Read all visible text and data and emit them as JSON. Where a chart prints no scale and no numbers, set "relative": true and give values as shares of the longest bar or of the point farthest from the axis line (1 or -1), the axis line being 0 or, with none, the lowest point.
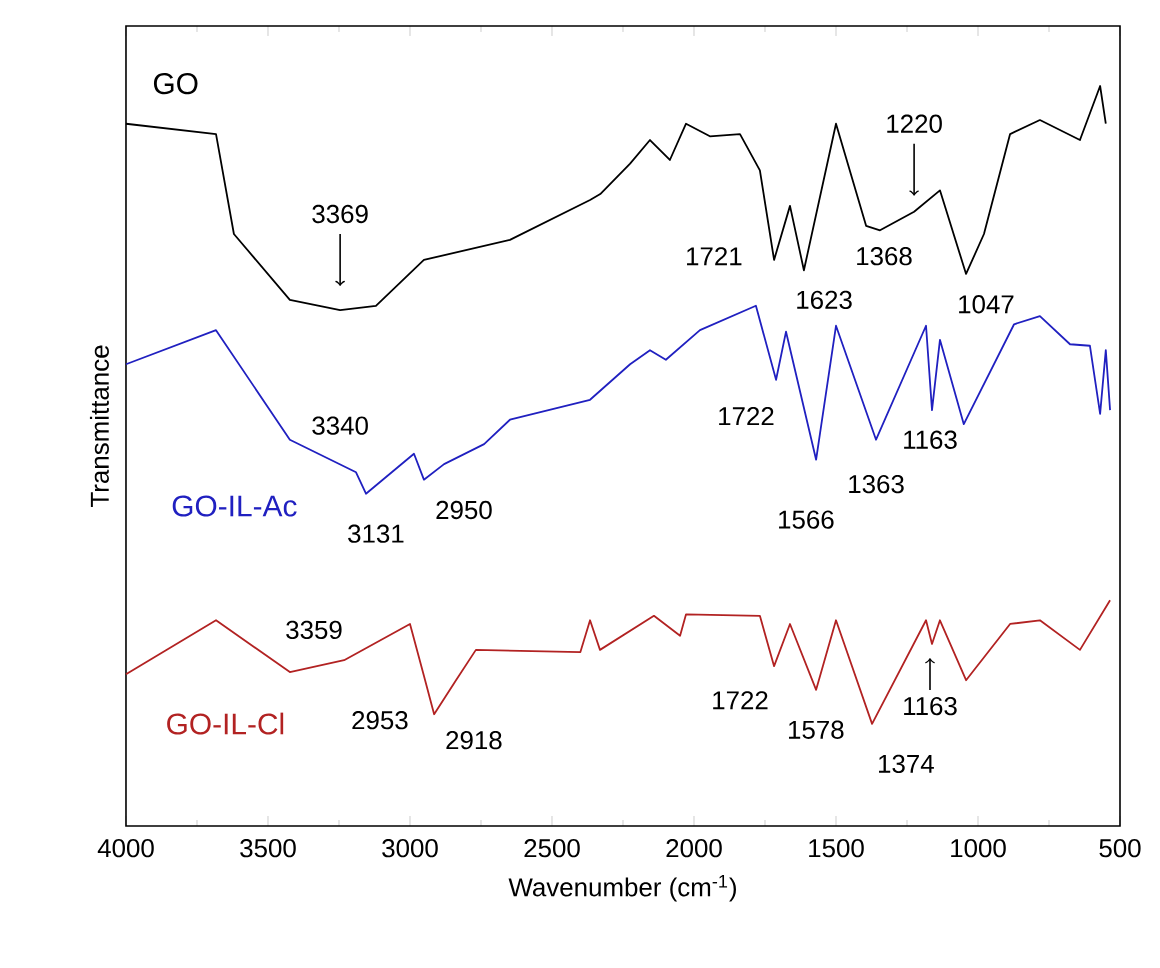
{
  "chart_data": {
    "type": "line",
    "relative": true,
    "xlabel": "Wavenumber (cm$^{-1}$)",
    "ylabel": "Transmittance",
    "xlim": [
      4000,
      500
    ],
    "xticks": [
      4000,
      3500,
      3000,
      2500,
      2000,
      1500,
      1000,
      500
    ],
    "series": [
      {
        "name": "GO",
        "color": "#000000",
        "x": [
          4000,
          3683,
          3620,
          3423,
          3246,
          3120,
          2951,
          2648,
          2366,
          2330,
          2225,
          2155,
          2085,
          2028,
          1944,
          1838,
          1768,
          1718,
          1662,
          1613,
          1500,
          1394,
          1345,
          1225,
          1134,
          1042,
          979,
          887,
          782,
          641,
          570,
          550
        ],
        "values": [
          0.949,
          0.935,
          0.8,
          0.711,
          0.697,
          0.703,
          0.765,
          0.792,
          0.846,
          0.854,
          0.895,
          0.927,
          0.9,
          0.949,
          0.932,
          0.935,
          0.886,
          0.765,
          0.838,
          0.751,
          0.949,
          0.811,
          0.805,
          0.83,
          0.859,
          0.746,
          0.8,
          0.935,
          0.954,
          0.927,
          1.0,
          0.949
        ]
      },
      {
        "name": "GO-IL-Ac",
        "color": "#2020c0",
        "x": [
          4000,
          3683,
          3423,
          3190,
          3155,
          2986,
          2951,
          2880,
          2739,
          2648,
          2366,
          2225,
          2155,
          2099,
          1979,
          1782,
          1711,
          1676,
          1570,
          1500,
          1359,
          1183,
          1162,
          1134,
          1050,
          873,
          782,
          676,
          606,
          570,
          550,
          535
        ],
        "values": [
          0.624,
          0.67,
          0.522,
          0.478,
          0.449,
          0.503,
          0.468,
          0.489,
          0.516,
          0.549,
          0.576,
          0.624,
          0.643,
          0.63,
          0.67,
          0.703,
          0.603,
          0.668,
          0.495,
          0.676,
          0.522,
          0.676,
          0.562,
          0.657,
          0.543,
          0.678,
          0.689,
          0.651,
          0.649,
          0.557,
          0.643,
          0.562
        ]
      },
      {
        "name": "GO-IL-Cl",
        "color": "#b22222",
        "x": [
          4000,
          3683,
          3423,
          3232,
          3000,
          2951,
          2915,
          2838,
          2768,
          2400,
          2366,
          2331,
          2141,
          2049,
          2028,
          1768,
          1718,
          1662,
          1570,
          1500,
          1373,
          1183,
          1162,
          1134,
          1042,
          887,
          782,
          641,
          535
        ],
        "values": [
          0.205,
          0.278,
          0.208,
          0.224,
          0.273,
          0.203,
          0.151,
          0.197,
          0.238,
          0.235,
          0.278,
          0.238,
          0.284,
          0.257,
          0.286,
          0.284,
          0.216,
          0.273,
          0.184,
          0.278,
          0.138,
          0.278,
          0.246,
          0.278,
          0.197,
          0.273,
          0.278,
          0.238,
          0.305
        ]
      }
    ],
    "annotations": [
      "3369",
      "1220",
      "1721",
      "1623",
      "1368",
      "1047",
      "1722",
      "1163",
      "1363",
      "1566",
      "3340",
      "3131",
      "2950",
      "3359",
      "2953",
      "2918",
      "1722",
      "1578",
      "1374",
      "1163"
    ]
  }
}
